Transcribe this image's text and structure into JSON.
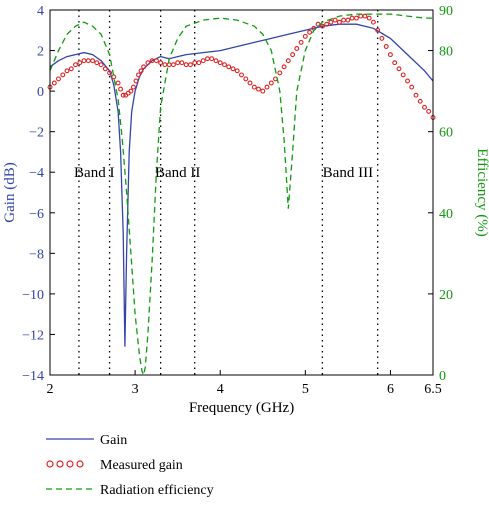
{
  "chart_data": {
    "type": "line",
    "xlabel": "Frequency (GHz)",
    "ylabel_left": "Gain (dB)",
    "ylabel_right": "Efficiency (%)",
    "x_ticks": [
      2,
      3,
      4,
      5,
      6,
      6.5
    ],
    "x_tick_labels": [
      "2",
      "3",
      "4",
      "5",
      "6",
      "6.5"
    ],
    "xlim": [
      2,
      6.5
    ],
    "ylim_left": [
      -14,
      4
    ],
    "ylim_right": [
      0,
      90
    ],
    "left_ticks": [
      4,
      2,
      0,
      -2,
      -4,
      -6,
      -8,
      -10,
      -12,
      -14
    ],
    "left_tick_labels": [
      "4",
      "2",
      "0",
      "−2",
      "−4",
      "−6",
      "−8",
      "−10",
      "−12",
      "−14"
    ],
    "right_ticks": [
      90,
      80,
      60,
      40,
      20,
      0
    ],
    "right_tick_labels": [
      "90",
      "80",
      "60",
      "40",
      "20",
      "0"
    ],
    "band_lines": [
      2.34,
      2.7,
      3.3,
      3.7,
      5.2,
      5.85
    ],
    "band_labels": [
      {
        "text": "Band I",
        "x": 2.52,
        "y": -4
      },
      {
        "text": "Band II",
        "x": 3.5,
        "y": -4
      },
      {
        "text": "Band III",
        "x": 5.5,
        "y": -4
      }
    ],
    "colors": {
      "gain": "#3344aa",
      "measured": "#dd2222",
      "efficiency": "#119911",
      "axis_left": "#3344aa",
      "axis_right": "#119911"
    },
    "legend_position": "below",
    "series": [
      {
        "name": "Gain",
        "axis": "left",
        "style": "solid",
        "x": [
          2.0,
          2.1,
          2.2,
          2.3,
          2.4,
          2.5,
          2.6,
          2.7,
          2.75,
          2.8,
          2.83,
          2.86,
          2.88,
          2.9,
          2.93,
          2.96,
          3.0,
          3.05,
          3.1,
          3.15,
          3.2,
          3.3,
          3.4,
          3.5,
          3.6,
          3.8,
          4.0,
          4.2,
          4.4,
          4.6,
          4.8,
          5.0,
          5.2,
          5.4,
          5.6,
          5.8,
          6.0,
          6.2,
          6.4,
          6.5
        ],
        "y": [
          1.2,
          1.5,
          1.7,
          1.8,
          1.9,
          1.8,
          1.5,
          1.0,
          0.3,
          -1.0,
          -3.0,
          -7.0,
          -12.6,
          -8.0,
          -3.0,
          -1.0,
          0.0,
          0.7,
          1.1,
          1.3,
          1.5,
          1.7,
          1.6,
          1.7,
          1.8,
          1.9,
          2.0,
          2.2,
          2.4,
          2.6,
          2.8,
          3.0,
          3.2,
          3.3,
          3.3,
          3.1,
          2.6,
          1.8,
          1.0,
          0.5
        ]
      },
      {
        "name": "Measured gain",
        "axis": "left",
        "style": "markers",
        "x": [
          2.0,
          2.05,
          2.1,
          2.15,
          2.2,
          2.25,
          2.3,
          2.35,
          2.4,
          2.45,
          2.5,
          2.55,
          2.6,
          2.65,
          2.7,
          2.75,
          2.8,
          2.83,
          2.86,
          2.89,
          2.92,
          2.95,
          2.98,
          3.01,
          3.04,
          3.07,
          3.1,
          3.15,
          3.2,
          3.25,
          3.3,
          3.35,
          3.4,
          3.45,
          3.5,
          3.55,
          3.6,
          3.65,
          3.7,
          3.75,
          3.8,
          3.85,
          3.9,
          3.95,
          4.0,
          4.05,
          4.1,
          4.15,
          4.2,
          4.25,
          4.3,
          4.35,
          4.4,
          4.45,
          4.5,
          4.55,
          4.6,
          4.65,
          4.7,
          4.75,
          4.8,
          4.85,
          4.9,
          4.95,
          5.0,
          5.05,
          5.1,
          5.15,
          5.2,
          5.25,
          5.3,
          5.35,
          5.4,
          5.45,
          5.5,
          5.55,
          5.6,
          5.65,
          5.7,
          5.75,
          5.8,
          5.85,
          5.9,
          5.95,
          6.0,
          6.05,
          6.1,
          6.15,
          6.2,
          6.25,
          6.3,
          6.35,
          6.4,
          6.45,
          6.5
        ],
        "y": [
          0.2,
          0.4,
          0.6,
          0.8,
          1.0,
          1.1,
          1.3,
          1.4,
          1.5,
          1.5,
          1.5,
          1.4,
          1.3,
          1.1,
          0.9,
          0.7,
          0.4,
          0.1,
          -0.2,
          -0.2,
          -0.1,
          0.0,
          0.2,
          0.5,
          0.8,
          1.0,
          1.2,
          1.4,
          1.5,
          1.5,
          1.4,
          1.3,
          1.3,
          1.3,
          1.4,
          1.4,
          1.3,
          1.3,
          1.4,
          1.4,
          1.5,
          1.6,
          1.6,
          1.5,
          1.4,
          1.3,
          1.2,
          1.1,
          1.0,
          0.8,
          0.6,
          0.4,
          0.2,
          0.1,
          0.0,
          0.2,
          0.4,
          0.6,
          0.9,
          1.2,
          1.5,
          1.8,
          2.1,
          2.4,
          2.7,
          2.9,
          3.1,
          3.3,
          3.2,
          3.3,
          3.4,
          3.5,
          3.4,
          3.5,
          3.5,
          3.6,
          3.6,
          3.7,
          3.7,
          3.6,
          3.4,
          3.0,
          2.6,
          2.2,
          1.8,
          1.4,
          1.1,
          0.8,
          0.5,
          0.2,
          -0.2,
          -0.5,
          -0.8,
          -1.0,
          -1.3
        ]
      },
      {
        "name": "Radiation efficiency",
        "axis": "right",
        "style": "dashed",
        "x": [
          2.0,
          2.1,
          2.2,
          2.3,
          2.4,
          2.5,
          2.6,
          2.7,
          2.8,
          2.85,
          2.9,
          2.95,
          3.0,
          3.05,
          3.08,
          3.1,
          3.12,
          3.15,
          3.2,
          3.25,
          3.3,
          3.4,
          3.5,
          3.6,
          3.8,
          4.0,
          4.2,
          4.4,
          4.5,
          4.6,
          4.7,
          4.75,
          4.8,
          4.85,
          4.9,
          5.0,
          5.1,
          5.2,
          5.4,
          5.6,
          5.8,
          6.0,
          6.2,
          6.4,
          6.5
        ],
        "y": [
          75,
          80,
          84,
          86,
          87,
          86,
          84,
          79,
          68,
          58,
          45,
          30,
          15,
          5,
          1,
          0,
          2,
          10,
          28,
          50,
          66,
          78,
          83,
          86,
          87.5,
          88,
          87.5,
          86,
          84,
          80,
          70,
          58,
          41,
          55,
          70,
          80,
          85,
          87,
          88.5,
          89,
          89,
          89,
          88.5,
          88,
          88
        ]
      }
    ]
  }
}
